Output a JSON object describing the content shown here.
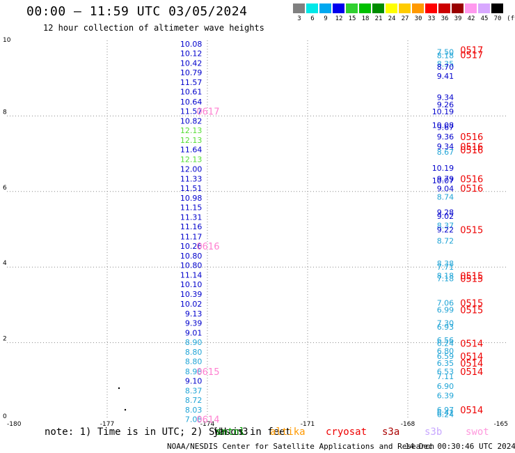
{
  "header": {
    "title": "00:00 – 11:59 UTC 03/05/2024",
    "subtitle": "12 hour collection of altimeter wave heights"
  },
  "colors": {
    "navy": "#0000cc",
    "cyan": "#1fa4d6",
    "green": "#55dd33",
    "magenta": "#ff7fd0",
    "red": "#ee0000",
    "grid": "#888888"
  },
  "color_scale": {
    "unit": "(ft)",
    "bins": [
      {
        "label": "3",
        "color": "#808080"
      },
      {
        "label": "6",
        "color": "#00e8e8"
      },
      {
        "label": "9",
        "color": "#00a8f0"
      },
      {
        "label": "12",
        "color": "#0000ee"
      },
      {
        "label": "15",
        "color": "#30d030"
      },
      {
        "label": "18",
        "color": "#00c000"
      },
      {
        "label": "21",
        "color": "#008c00"
      },
      {
        "label": "24",
        "color": "#ffff00"
      },
      {
        "label": "27",
        "color": "#ffcc00"
      },
      {
        "label": "30",
        "color": "#ff9900"
      },
      {
        "label": "33",
        "color": "#ff0000"
      },
      {
        "label": "36",
        "color": "#cc0000"
      },
      {
        "label": "39",
        "color": "#990000"
      },
      {
        "label": "42",
        "color": "#ff99ee"
      },
      {
        "label": "45",
        "color": "#d8a8ff"
      },
      {
        "label": "70",
        "color": "#000000"
      }
    ]
  },
  "map": {
    "x_ticks": [
      "-180",
      "-177",
      "-174",
      "-171",
      "-168",
      "-165"
    ],
    "y_ticks": [
      "0",
      "2",
      "4",
      "6",
      "8",
      "10"
    ],
    "lon_range": [
      -180,
      -165
    ],
    "lat_range": [
      0,
      10
    ]
  },
  "track_west": {
    "lon": -174.2,
    "points": [
      {
        "lat": 9.91,
        "v": "10.08",
        "c": "navy"
      },
      {
        "lat": 9.66,
        "v": "10.12",
        "c": "navy"
      },
      {
        "lat": 9.4,
        "v": "10.42",
        "c": "navy"
      },
      {
        "lat": 9.15,
        "v": "10.79",
        "c": "navy"
      },
      {
        "lat": 8.89,
        "v": "11.57",
        "c": "navy"
      },
      {
        "lat": 8.64,
        "v": "10.61",
        "c": "navy"
      },
      {
        "lat": 8.38,
        "v": "10.64",
        "c": "navy"
      },
      {
        "lat": 8.13,
        "v": "11.57",
        "c": "navy"
      },
      {
        "lat": 7.87,
        "v": "10.82",
        "c": "navy"
      },
      {
        "lat": 7.62,
        "v": "12.13",
        "c": "green"
      },
      {
        "lat": 7.36,
        "v": "12.13",
        "c": "green"
      },
      {
        "lat": 7.11,
        "v": "11.64",
        "c": "navy"
      },
      {
        "lat": 6.85,
        "v": "12.13",
        "c": "green"
      },
      {
        "lat": 6.6,
        "v": "12.00",
        "c": "navy"
      },
      {
        "lat": 6.34,
        "v": "11.33",
        "c": "navy"
      },
      {
        "lat": 6.09,
        "v": "11.51",
        "c": "navy"
      },
      {
        "lat": 5.83,
        "v": "10.98",
        "c": "navy"
      },
      {
        "lat": 5.58,
        "v": "11.15",
        "c": "navy"
      },
      {
        "lat": 5.32,
        "v": "11.31",
        "c": "navy"
      },
      {
        "lat": 5.07,
        "v": "11.16",
        "c": "navy"
      },
      {
        "lat": 4.81,
        "v": "11.17",
        "c": "navy"
      },
      {
        "lat": 4.56,
        "v": "10.26",
        "c": "navy"
      },
      {
        "lat": 4.3,
        "v": "10.80",
        "c": "navy"
      },
      {
        "lat": 4.05,
        "v": "10.80",
        "c": "navy"
      },
      {
        "lat": 3.79,
        "v": "11.14",
        "c": "navy"
      },
      {
        "lat": 3.54,
        "v": "10.10",
        "c": "navy"
      },
      {
        "lat": 3.28,
        "v": "10.39",
        "c": "navy"
      },
      {
        "lat": 3.03,
        "v": "10.02",
        "c": "navy"
      },
      {
        "lat": 2.77,
        "v": "9.13",
        "c": "navy"
      },
      {
        "lat": 2.52,
        "v": "9.39",
        "c": "navy"
      },
      {
        "lat": 2.26,
        "v": "9.01",
        "c": "navy"
      },
      {
        "lat": 2.01,
        "v": "8.90",
        "c": "cyan"
      },
      {
        "lat": 1.75,
        "v": "8.80",
        "c": "cyan"
      },
      {
        "lat": 1.5,
        "v": "8.80",
        "c": "cyan"
      },
      {
        "lat": 1.24,
        "v": "8.98",
        "c": "cyan"
      },
      {
        "lat": 0.99,
        "v": "9.10",
        "c": "navy"
      },
      {
        "lat": 0.73,
        "v": "8.37",
        "c": "cyan"
      },
      {
        "lat": 0.48,
        "v": "8.72",
        "c": "cyan"
      },
      {
        "lat": 0.22,
        "v": "8.03",
        "c": "cyan"
      },
      {
        "lat": -0.03,
        "v": "7.08",
        "c": "cyan"
      }
    ],
    "tags": [
      {
        "lat": 8.13,
        "t": "0617",
        "c": "magenta"
      },
      {
        "lat": 4.56,
        "t": "0616",
        "c": "magenta"
      },
      {
        "lat": 1.24,
        "t": "0615",
        "c": "magenta"
      },
      {
        "lat": -0.03,
        "t": "0614",
        "c": "magenta"
      }
    ]
  },
  "track_east": {
    "lon": -166.6,
    "points": [
      {
        "lat": 9.7,
        "v": "7.50",
        "c": "cyan"
      },
      {
        "lat": 9.6,
        "v": "8.18",
        "c": "cyan"
      },
      {
        "lat": 9.38,
        "v": "8.35",
        "c": "cyan"
      },
      {
        "lat": 9.3,
        "v": "8.70",
        "c": "navy"
      },
      {
        "lat": 9.06,
        "v": "9.41",
        "c": "navy"
      },
      {
        "lat": 8.5,
        "v": "9.34",
        "c": "navy"
      },
      {
        "lat": 8.3,
        "v": "9.26",
        "c": "navy"
      },
      {
        "lat": 8.12,
        "v": "10.19",
        "c": "navy"
      },
      {
        "lat": 7.76,
        "v": "10.08",
        "c": "navy"
      },
      {
        "lat": 7.7,
        "v": "9.67",
        "c": "navy"
      },
      {
        "lat": 7.45,
        "v": "9.36",
        "c": "navy"
      },
      {
        "lat": 7.2,
        "v": "9.34",
        "c": "navy"
      },
      {
        "lat": 7.05,
        "v": "8.67",
        "c": "cyan"
      },
      {
        "lat": 6.62,
        "v": "10.19",
        "c": "navy"
      },
      {
        "lat": 6.34,
        "v": "9.79",
        "c": "navy"
      },
      {
        "lat": 6.29,
        "v": "10.07",
        "c": "navy"
      },
      {
        "lat": 6.08,
        "v": "9.04",
        "c": "navy"
      },
      {
        "lat": 5.86,
        "v": "8.74",
        "c": "cyan"
      },
      {
        "lat": 5.45,
        "v": "9.28",
        "c": "navy"
      },
      {
        "lat": 5.35,
        "v": "9.02",
        "c": "navy"
      },
      {
        "lat": 5.1,
        "v": "8.37",
        "c": "cyan"
      },
      {
        "lat": 4.99,
        "v": "9.22",
        "c": "navy"
      },
      {
        "lat": 4.7,
        "v": "8.72",
        "c": "cyan"
      },
      {
        "lat": 4.1,
        "v": "8.38",
        "c": "cyan"
      },
      {
        "lat": 4.0,
        "v": "7.71",
        "c": "cyan"
      },
      {
        "lat": 3.77,
        "v": "8.18",
        "c": "cyan"
      },
      {
        "lat": 3.7,
        "v": "7.18",
        "c": "cyan"
      },
      {
        "lat": 3.05,
        "v": "7.06",
        "c": "cyan"
      },
      {
        "lat": 2.87,
        "v": "6.99",
        "c": "cyan"
      },
      {
        "lat": 2.52,
        "v": "7.30",
        "c": "cyan"
      },
      {
        "lat": 2.42,
        "v": "6.93",
        "c": "cyan"
      },
      {
        "lat": 2.07,
        "v": "6.56",
        "c": "cyan"
      },
      {
        "lat": 1.98,
        "v": "6.24",
        "c": "cyan"
      },
      {
        "lat": 1.78,
        "v": "6.80",
        "c": "cyan"
      },
      {
        "lat": 1.64,
        "v": "6.59",
        "c": "cyan"
      },
      {
        "lat": 1.46,
        "v": "6.35",
        "c": "cyan"
      },
      {
        "lat": 1.24,
        "v": "6.53",
        "c": "cyan"
      },
      {
        "lat": 1.11,
        "v": "7.11",
        "c": "cyan"
      },
      {
        "lat": 0.85,
        "v": "6.90",
        "c": "cyan"
      },
      {
        "lat": 0.6,
        "v": "6.39",
        "c": "cyan"
      },
      {
        "lat": 0.22,
        "v": "6.97",
        "c": "cyan"
      },
      {
        "lat": 0.15,
        "v": "6.42",
        "c": "cyan"
      },
      {
        "lat": 0.1,
        "v": "6.24",
        "c": "cyan"
      }
    ],
    "tags": [
      {
        "lat": 9.75,
        "t": "0517",
        "c": "red"
      },
      {
        "lat": 9.62,
        "t": "0517",
        "c": "red"
      },
      {
        "lat": 7.45,
        "t": "0516",
        "c": "red"
      },
      {
        "lat": 7.2,
        "t": "0516",
        "c": "red"
      },
      {
        "lat": 7.1,
        "t": "0516",
        "c": "red"
      },
      {
        "lat": 6.34,
        "t": "0516",
        "c": "red"
      },
      {
        "lat": 6.09,
        "t": "0516",
        "c": "red"
      },
      {
        "lat": 4.99,
        "t": "0515",
        "c": "red"
      },
      {
        "lat": 3.77,
        "t": "0515",
        "c": "red"
      },
      {
        "lat": 3.7,
        "t": "0515",
        "c": "red"
      },
      {
        "lat": 3.05,
        "t": "0515",
        "c": "red"
      },
      {
        "lat": 2.87,
        "t": "0515",
        "c": "red"
      },
      {
        "lat": 1.98,
        "t": "0514",
        "c": "red"
      },
      {
        "lat": 1.64,
        "t": "0514",
        "c": "red"
      },
      {
        "lat": 1.46,
        "t": "0514",
        "c": "red"
      },
      {
        "lat": 1.24,
        "t": "0514",
        "c": "red"
      },
      {
        "lat": 0.22,
        "t": "0514",
        "c": "red"
      }
    ]
  },
  "footer": {
    "note": "note: 1) Time is in UTC; 2) SWH is in feet",
    "satellites": [
      {
        "name": "jason3",
        "color": "#000000"
      },
      {
        "name": "sntnl",
        "color": "#009900"
      },
      {
        "name": "altika",
        "color": "#ff9900"
      },
      {
        "name": "cryosat",
        "color": "#ee0000"
      },
      {
        "name": "s3a",
        "color": "#aa0000"
      },
      {
        "name": "s3b",
        "color": "#c8a8ff"
      },
      {
        "name": "swot",
        "color": "#ff99dd"
      }
    ],
    "credit": "NOAA/NESDIS Center for Satellite Applications and Research",
    "timestamp": "14 Dec 00:30:46 UTC 2024"
  }
}
